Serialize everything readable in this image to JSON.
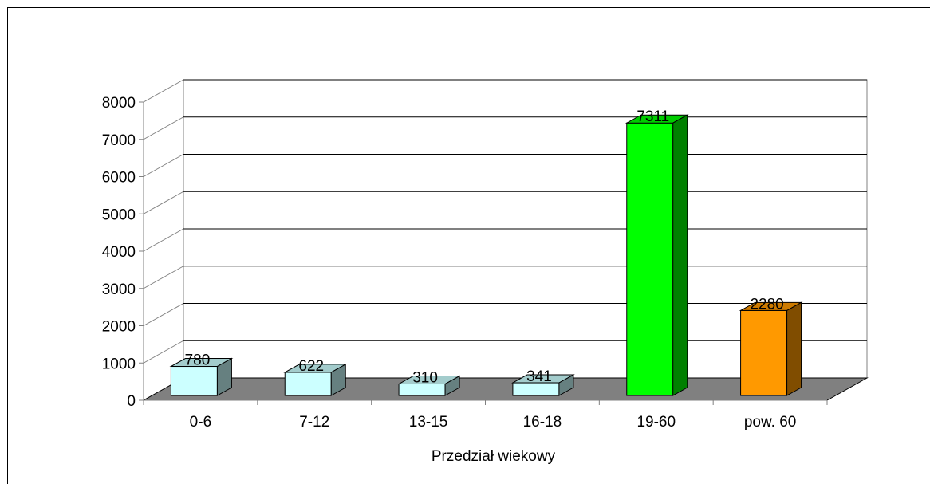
{
  "chart_data": {
    "type": "bar",
    "categories": [
      "0-6",
      "7-12",
      "13-15",
      "16-18",
      "19-60",
      "pow. 60"
    ],
    "values": [
      780,
      622,
      310,
      341,
      7311,
      2280
    ],
    "title": "",
    "xlabel": "Przedział wiekowy",
    "ylabel": "",
    "ylim": [
      0,
      8000
    ],
    "yticks": [
      0,
      1000,
      2000,
      3000,
      4000,
      5000,
      6000,
      7000,
      8000
    ],
    "grid": true,
    "legend": "none",
    "style": "3d-column",
    "colors": {
      "front": [
        "#ccffff",
        "#ccffff",
        "#ccffff",
        "#ccffff",
        "#00ff00",
        "#ff9900"
      ],
      "top": [
        "#a3cccc",
        "#a3cccc",
        "#a3cccc",
        "#a3cccc",
        "#00cc00",
        "#cc7a00"
      ],
      "side": [
        "#668080",
        "#668080",
        "#668080",
        "#668080",
        "#008000",
        "#804d00"
      ],
      "floor": "#808080",
      "grid": "#000000"
    }
  }
}
